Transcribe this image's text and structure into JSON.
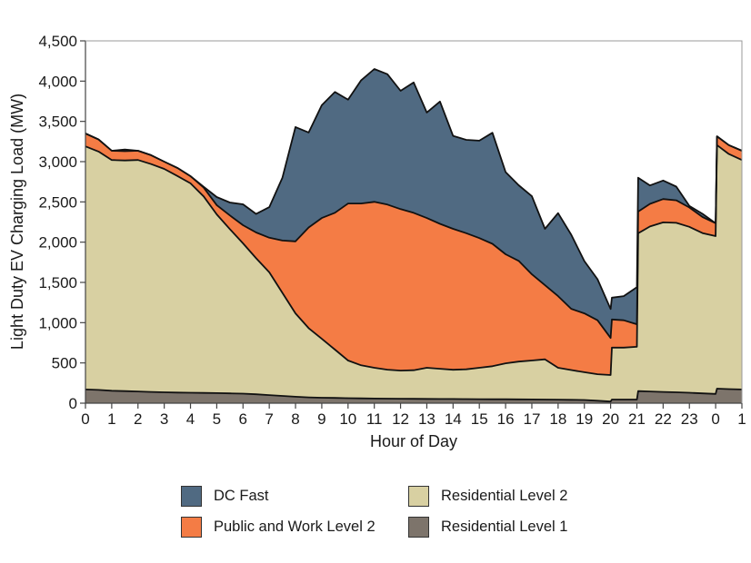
{
  "chart_data": {
    "type": "area",
    "stacked": true,
    "title": "",
    "xlabel": "Hour of Day",
    "ylabel": "Light Duty EV Charging Load (MW)",
    "xlim": [
      0,
      25
    ],
    "ylim": [
      0,
      4500
    ],
    "x_ticks": [
      0,
      1,
      2,
      3,
      4,
      5,
      6,
      7,
      8,
      9,
      10,
      11,
      12,
      13,
      14,
      15,
      16,
      17,
      18,
      19,
      20,
      21,
      22,
      23,
      24,
      25
    ],
    "x_tick_labels": [
      "0",
      "1",
      "2",
      "3",
      "4",
      "5",
      "6",
      "7",
      "8",
      "9",
      "10",
      "11",
      "12",
      "13",
      "14",
      "15",
      "16",
      "17",
      "18",
      "19",
      "20",
      "21",
      "22",
      "23",
      "0",
      "1"
    ],
    "y_ticks": [
      0,
      500,
      1000,
      1500,
      2000,
      2500,
      3000,
      3500,
      4000,
      4500
    ],
    "y_tick_labels": [
      "0",
      "500",
      "1,000",
      "1,500",
      "2,000",
      "2,500",
      "3,000",
      "3,500",
      "4,000",
      "4,500"
    ],
    "grid": false,
    "legend_position": "bottom",
    "legend": [
      {
        "name": "DC Fast",
        "color": "#506a82"
      },
      {
        "name": "Public and Work Level 2",
        "color": "#f47c45"
      },
      {
        "name": "Residential Level 2",
        "color": "#d8d0a2"
      },
      {
        "name": "Residential Level 1",
        "color": "#7d746b"
      }
    ],
    "x": [
      0,
      0.5,
      1,
      1.5,
      2,
      2.5,
      3,
      3.5,
      4,
      4.5,
      5,
      5.5,
      6,
      6.5,
      7,
      7.5,
      8,
      8.5,
      9,
      9.5,
      10,
      10.5,
      11,
      11.5,
      12,
      12.5,
      13,
      13.5,
      14,
      14.5,
      15,
      15.5,
      16,
      16.5,
      17,
      17.5,
      18,
      18.5,
      19,
      19.5,
      20,
      20.05,
      20.5,
      21,
      21.05,
      21.5,
      22,
      22.5,
      23,
      23.5,
      24,
      24.05,
      24.5,
      25
    ],
    "series": [
      {
        "name": "Residential Level 1",
        "color": "#7d746b",
        "values": [
          170,
          165,
          155,
          150,
          145,
          140,
          135,
          132,
          130,
          128,
          125,
          122,
          118,
          110,
          100,
          90,
          80,
          72,
          68,
          65,
          62,
          60,
          58,
          56,
          55,
          54,
          53,
          52,
          52,
          51,
          50,
          49,
          48,
          47,
          46,
          45,
          44,
          42,
          40,
          30,
          20,
          45,
          45,
          45,
          150,
          145,
          140,
          135,
          130,
          122,
          115,
          180,
          175,
          170
        ]
      },
      {
        "name": "Residential Level 2",
        "color": "#d8d0a2",
        "values": [
          3020,
          2960,
          2865,
          2865,
          2875,
          2830,
          2775,
          2690,
          2600,
          2440,
          2220,
          2040,
          1867,
          1690,
          1525,
          1280,
          1035,
          860,
          732,
          600,
          468,
          410,
          382,
          360,
          350,
          355,
          387,
          375,
          363,
          370,
          390,
          410,
          447,
          470,
          484,
          500,
          396,
          370,
          345,
          330,
          330,
          645,
          645,
          655,
          1960,
          2050,
          2105,
          2105,
          2060,
          1990,
          1960,
          3025,
          2920,
          2850
        ]
      },
      {
        "name": "Public and Work Level 2",
        "color": "#f47c45",
        "values": [
          160,
          150,
          115,
          115,
          115,
          110,
          90,
          100,
          90,
          110,
          115,
          170,
          225,
          320,
          430,
          650,
          895,
          1250,
          1500,
          1700,
          1950,
          2010,
          2060,
          2050,
          2005,
          1955,
          1860,
          1800,
          1750,
          1690,
          1610,
          1520,
          1355,
          1250,
          1070,
          920,
          890,
          760,
          730,
          670,
          460,
          350,
          340,
          280,
          270,
          280,
          290,
          280,
          240,
          200,
          160,
          110,
          110,
          115
        ]
      },
      {
        "name": "DC Fast",
        "color": "#506a82",
        "values": [
          0,
          0,
          0,
          20,
          0,
          0,
          0,
          0,
          0,
          10,
          100,
          160,
          260,
          230,
          380,
          780,
          1420,
          1180,
          1400,
          1500,
          1290,
          1530,
          1650,
          1620,
          1470,
          1620,
          1310,
          1520,
          1155,
          1160,
          1210,
          1380,
          1020,
          940,
          970,
          700,
          1030,
          920,
          650,
          510,
          360,
          270,
          300,
          460,
          420,
          230,
          230,
          170,
          20,
          40,
          0,
          0,
          0,
          0
        ]
      }
    ]
  }
}
